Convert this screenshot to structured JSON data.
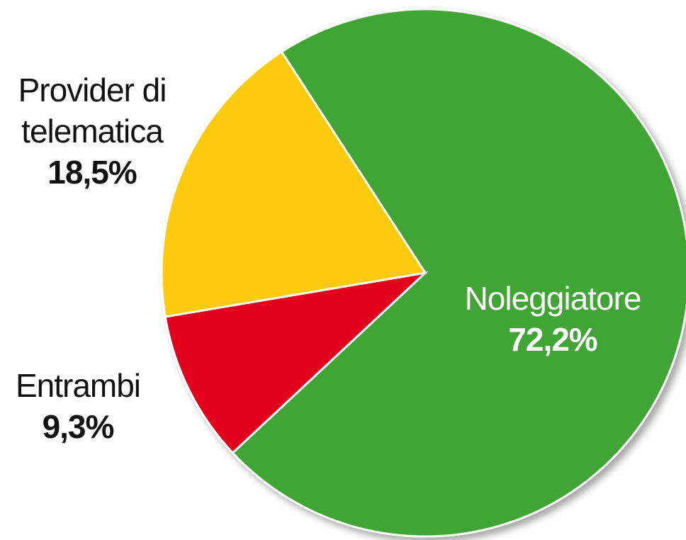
{
  "chart_data": {
    "type": "pie",
    "categories": [
      "Noleggiatore",
      "Entrambi",
      "Provider di telematica"
    ],
    "values": [
      72.2,
      9.3,
      18.5
    ],
    "value_labels": [
      "72,2%",
      "9,3%",
      "18,5%"
    ],
    "colors": [
      "#3fa535",
      "#e2001a",
      "#fdcb10"
    ]
  }
}
